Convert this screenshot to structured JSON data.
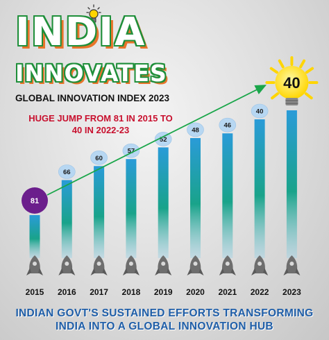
{
  "header": {
    "title_line1": "INDIA",
    "title_line2": "INNOVATES",
    "index_title": "GLOBAL INNOVATION INDEX 2023",
    "headline_line1": "HUGE JUMP FROM 81 IN 2015 TO",
    "headline_line2": "40 IN 2022-23"
  },
  "footer": {
    "line1": "INDIAN GOVT'S SUSTAINED EFFORTS TRANSFORMING",
    "line2": "INDIA INTO A GLOBAL INNOVATION HUB"
  },
  "colors": {
    "title_outline": "#1f8f3a",
    "title_shadow": "#e8742a",
    "headline": "#c8102e",
    "footer": "#1f5ea8",
    "bar_top": "#2a9bd8",
    "bar_mid": "#19a38a",
    "bar_bottom": "#a9d4e6",
    "badge": "#b7d7f2",
    "first_badge": "#6b1e8c",
    "bulb": "#ffd500",
    "trend_arrow": "#1aa64a"
  },
  "icons": [
    "lightbulb-icon",
    "rocket-icon"
  ],
  "chart_data": {
    "type": "bar",
    "categories": [
      "2015",
      "2016",
      "2017",
      "2018",
      "2019",
      "2020",
      "2021",
      "2022",
      "2023"
    ],
    "values": [
      81,
      66,
      60,
      57,
      52,
      48,
      46,
      40,
      40
    ],
    "value_labels": [
      "81",
      "66",
      "60",
      "57",
      "52",
      "48",
      "46",
      "40",
      "40"
    ],
    "ylabel": "",
    "xlabel": "",
    "note": "Rank (lower is better); bars drawn taller for better rank"
  }
}
